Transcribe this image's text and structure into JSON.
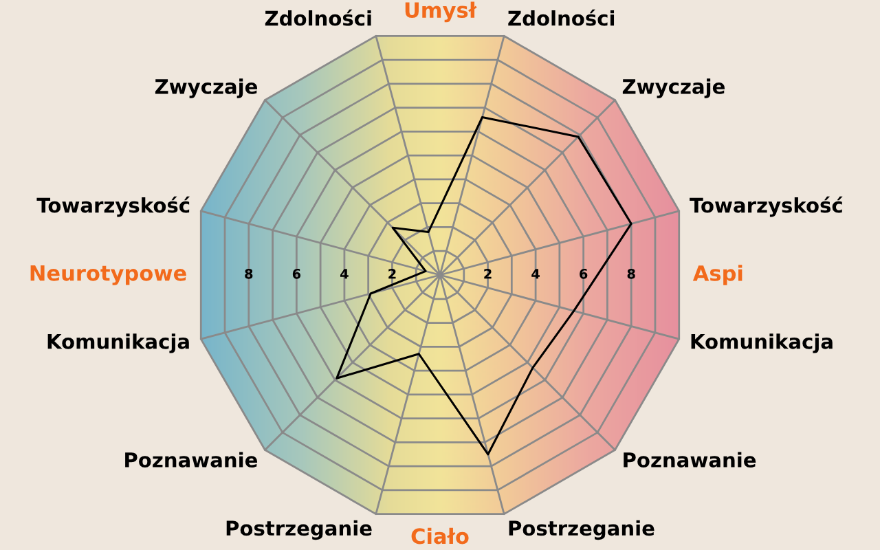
{
  "chart_data": {
    "type": "radar",
    "categories": [
      "Zdolności",
      "Zwyczaje",
      "Towarzyskość",
      "Komunikacja",
      "Poznawanie",
      "Postrzeganie",
      "Postrzeganie",
      "Poznawanie",
      "Komunikacja",
      "Towarzyskość",
      "Zwyczaje",
      "Zdolności"
    ],
    "series": [
      {
        "color": "#000000",
        "values": [
          6.6,
          7.9,
          8.0,
          5.6,
          5.3,
          7.5,
          3.3,
          5.9,
          2.9,
          0.6,
          2.7,
          1.8
        ]
      }
    ],
    "ylim": [
      0,
      10
    ],
    "yticks": [
      2,
      4,
      6,
      8
    ],
    "grid": true,
    "annotations": [
      "Umysł",
      "Aspi",
      "Ciało",
      "Neurotypowe",
      "8",
      "6",
      "4",
      "2"
    ]
  }
}
